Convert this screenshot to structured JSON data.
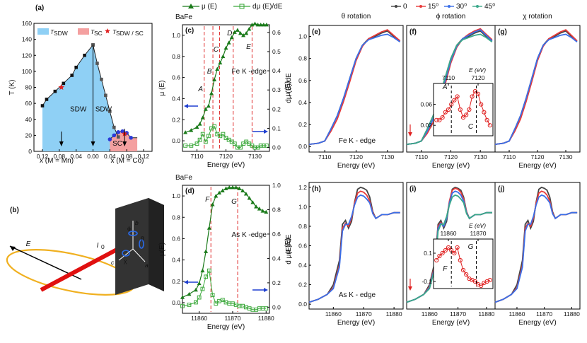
{
  "colors": {
    "sdw_fill": "#8fd0f5",
    "sc_fill": "#f4a0a0",
    "phase_line": "#222222",
    "green_mu": "#1a7a1a",
    "green_d": "#3aa83a",
    "dash_red": "#e03030",
    "arrow_blue": "#1f3fd0",
    "s0": "#444444",
    "s15": "#e83a3a",
    "s30": "#3a6fe8",
    "s45": "#3aa88a",
    "inset_red": "#e02020",
    "ellipse": "#f0b020",
    "beam": "#e01010",
    "crystal": "#333333"
  },
  "chart_data": [
    {
      "panel": "a",
      "type": "area",
      "label": "(a)",
      "ylabel": "T (K)",
      "ylim": [
        0,
        160
      ],
      "yticks": [
        "0",
        "20",
        "40",
        "60",
        "80",
        "100",
        "120",
        "140",
        "160"
      ],
      "xticks": [
        "0.12",
        "0.08",
        "0.04",
        "0.00",
        "0.04",
        "0.08",
        "0.12"
      ],
      "xlabel_left": "x (M = Mn)",
      "xlabel_right": "x (M = Co)",
      "legend": [
        "T_SDW",
        "T_SC",
        "T_SDW / T_SC"
      ],
      "legend_items": {
        "sdw": "SDW",
        "sc": "SC",
        "sdw_sc": "SDW / SC"
      },
      "region_labels": [
        "SDW",
        "SDW",
        "SC"
      ],
      "sdw_mn": {
        "x": [
          -0.12,
          -0.11,
          -0.09,
          -0.07,
          -0.05,
          -0.04,
          -0.02,
          0.0
        ],
        "y": [
          57,
          65,
          75,
          85,
          95,
          105,
          120,
          133
        ]
      },
      "sdw_co": {
        "x": [
          0.0,
          0.01,
          0.02,
          0.03,
          0.04,
          0.05,
          0.06
        ],
        "y": [
          133,
          110,
          90,
          70,
          50,
          30,
          18
        ]
      },
      "sc_co": {
        "x": [
          0.04,
          0.05,
          0.06,
          0.07,
          0.08,
          0.09
        ],
        "y": [
          15,
          20,
          24,
          25,
          23,
          17
        ]
      },
      "star_points": [
        {
          "x": -0.075,
          "y": 80
        },
        {
          "x": 0.075,
          "y": 22
        }
      ]
    },
    {
      "panel": "c",
      "type": "line",
      "label": "(c)",
      "title": "BaFe2As2",
      "legend": [
        "μ (E)",
        "dμ (E)/dE"
      ],
      "xlabel": "Energy (eV)",
      "ylabel_left": "μ (E)",
      "ylabel_right": "dμ (E)/dE",
      "xlim": [
        7105,
        7135
      ],
      "xticks": [
        "7110",
        "7120",
        "7130"
      ],
      "ylim_left": [
        -0.1,
        1.1
      ],
      "yticks_left": [
        "0.0",
        "0.2",
        "0.4",
        "0.6",
        "0.8",
        "1.0"
      ],
      "ylim_right": [
        -0.02,
        0.64
      ],
      "yticks_right": [
        "0.0",
        "0.1",
        "0.2",
        "0.3",
        "0.4",
        "0.5",
        "0.6"
      ],
      "edge_label": "Fe K -edge",
      "features": [
        {
          "name": "A",
          "x": 7112.5
        },
        {
          "name": "B",
          "x": 7115.5
        },
        {
          "name": "C",
          "x": 7117.8
        },
        {
          "name": "D",
          "x": 7122.5
        },
        {
          "name": "E",
          "x": 7129
        }
      ],
      "mu": {
        "x": [
          7106,
          7108,
          7110,
          7111,
          7112,
          7113,
          7114,
          7115,
          7116,
          7117,
          7118,
          7119,
          7120,
          7121,
          7122,
          7123,
          7124,
          7125,
          7126,
          7127,
          7128,
          7129,
          7130,
          7131,
          7132,
          7133,
          7134
        ],
        "y": [
          0.08,
          0.1,
          0.13,
          0.16,
          0.22,
          0.3,
          0.33,
          0.45,
          0.58,
          0.68,
          0.74,
          0.8,
          0.88,
          0.93,
          0.98,
          1.03,
          1.05,
          1.02,
          1.0,
          1.02,
          1.06,
          1.1,
          1.11,
          1.1,
          1.1,
          1.1,
          1.1
        ]
      },
      "dmu": {
        "x": [
          7106,
          7108,
          7110,
          7111,
          7112,
          7113,
          7114,
          7115,
          7116,
          7117,
          7118,
          7119,
          7120,
          7121,
          7122,
          7123,
          7124,
          7125,
          7126,
          7127,
          7128,
          7129,
          7130,
          7131,
          7132,
          7133,
          7134
        ],
        "y": [
          0.01,
          0.01,
          0.02,
          0.04,
          0.07,
          0.03,
          0.06,
          0.1,
          0.11,
          0.07,
          0.06,
          0.07,
          0.05,
          0.04,
          0.03,
          0.02,
          0.0,
          0.0,
          0.02,
          0.03,
          0.02,
          0.01,
          0.0,
          0.0,
          0.01,
          0.01,
          0.01
        ]
      }
    },
    {
      "panel": "d",
      "type": "line",
      "label": "(d)",
      "title": "BaFe2As2",
      "xlabel": "Energy (eV)",
      "ylabel_left": "μ(E)",
      "ylabel_right": "d μ(E)/dE",
      "xlim": [
        11855,
        11881
      ],
      "xticks": [
        "11860",
        "11870",
        "11880"
      ],
      "ylim_left": [
        -0.1,
        1.1
      ],
      "yticks_left": [
        "0.0",
        "0.2",
        "0.4",
        "0.6",
        "0.8",
        "1.0"
      ],
      "ylim_right": [
        -0.05,
        1.0
      ],
      "yticks_right": [
        "0.0",
        "0.2",
        "0.4",
        "0.6",
        "0.8",
        "1.0"
      ],
      "edge_label": "As K -edge",
      "features": [
        {
          "name": "F",
          "x": 11863.5
        },
        {
          "name": "G",
          "x": 11871.5
        }
      ],
      "mu": {
        "x": [
          11855,
          11857,
          11859,
          11860,
          11861,
          11862,
          11863,
          11864,
          11865,
          11866,
          11867,
          11868,
          11869,
          11870,
          11871,
          11872,
          11873,
          11874,
          11875,
          11876,
          11877,
          11878,
          11879,
          11880
        ],
        "y": [
          0.05,
          0.08,
          0.12,
          0.18,
          0.3,
          0.48,
          0.7,
          0.92,
          1.0,
          1.03,
          1.05,
          1.07,
          1.08,
          1.08,
          1.08,
          1.07,
          1.05,
          1.02,
          0.98,
          0.94,
          0.9,
          0.88,
          0.86,
          0.85
        ]
      },
      "dmu": {
        "x": [
          11855,
          11857,
          11859,
          11860,
          11861,
          11862,
          11863,
          11864,
          11865,
          11866,
          11867,
          11868,
          11869,
          11870,
          11871,
          11872,
          11873,
          11874,
          11875,
          11876,
          11877,
          11878,
          11879,
          11880
        ],
        "y": [
          0.01,
          0.02,
          0.04,
          0.08,
          0.15,
          0.25,
          0.3,
          0.1,
          0.03,
          0.05,
          0.06,
          0.04,
          0.03,
          0.03,
          0.02,
          0.01,
          0.01,
          0.0,
          -0.01,
          -0.02,
          -0.02,
          -0.01,
          -0.01,
          -0.01
        ]
      }
    },
    {
      "panel": "e-j",
      "type": "line",
      "legend": [
        "0",
        "15⁰",
        "30⁰",
        "45⁰"
      ],
      "columns": [
        "θ rotation",
        "ϕ rotation",
        "χ rotation"
      ],
      "top_labels": [
        "(e)",
        "(f)",
        "(g)"
      ],
      "bottom_labels": [
        "(h)",
        "(i)",
        "(j)"
      ],
      "top": {
        "xlabel": "Energy (eV)",
        "ylabel": "μ (E)",
        "xlim": [
          7105,
          7135
        ],
        "xticks": [
          "7110",
          "7120",
          "7130"
        ],
        "ylim": [
          -0.05,
          1.1
        ],
        "yticks": [
          "0.0",
          "0.2",
          "0.4",
          "0.6",
          "0.8",
          "1.0"
        ],
        "edge_label": "Fe K - edge",
        "x": [
          7105,
          7108,
          7110,
          7112,
          7114,
          7116,
          7118,
          7120,
          7122,
          7124,
          7126,
          7128,
          7130,
          7132,
          7134
        ],
        "y_phi_0": [
          0.02,
          0.03,
          0.05,
          0.16,
          0.28,
          0.44,
          0.62,
          0.8,
          0.92,
          0.98,
          1.0,
          1.03,
          1.05,
          1.0,
          0.96
        ],
        "y_phi_15": [
          0.02,
          0.03,
          0.05,
          0.12,
          0.22,
          0.38,
          0.56,
          0.76,
          0.9,
          0.98,
          1.02,
          1.05,
          1.07,
          1.02,
          0.97
        ],
        "y_phi_30": [
          0.02,
          0.03,
          0.05,
          0.14,
          0.25,
          0.41,
          0.59,
          0.78,
          0.91,
          0.98,
          1.01,
          1.04,
          1.06,
          1.01,
          0.96
        ],
        "y_phi_45": [
          0.02,
          0.03,
          0.05,
          0.16,
          0.28,
          0.44,
          0.62,
          0.8,
          0.92,
          0.97,
          0.99,
          1.01,
          1.02,
          0.99,
          0.95
        ]
      },
      "bottom": {
        "xlabel": "Energy (eV)",
        "ylabel": "μ (E)",
        "xlim": [
          11852,
          11883
        ],
        "xticks": [
          "11860",
          "11870",
          "11880"
        ],
        "ylim": [
          -0.05,
          1.25
        ],
        "yticks": [
          "0.0",
          "0.2",
          "0.4",
          "0.6",
          "0.8",
          "1.0",
          "1.2"
        ],
        "edge_label": "As K - edge",
        "x": [
          11852,
          11855,
          11858,
          11860,
          11862,
          11863,
          11864,
          11865,
          11866,
          11867,
          11868,
          11869,
          11870,
          11871,
          11872,
          11873,
          11874,
          11876,
          11878,
          11880,
          11882
        ],
        "y_0": [
          0.02,
          0.05,
          0.1,
          0.2,
          0.45,
          0.82,
          0.86,
          0.78,
          0.85,
          1.05,
          1.18,
          1.2,
          1.19,
          1.17,
          1.1,
          0.95,
          0.88,
          0.92,
          0.92,
          0.94,
          0.94
        ],
        "y_phi_15": [
          0.02,
          0.05,
          0.1,
          0.18,
          0.42,
          0.8,
          0.84,
          0.8,
          0.88,
          1.06,
          1.17,
          1.19,
          1.18,
          1.15,
          1.08,
          0.95,
          0.88,
          0.92,
          0.92,
          0.94,
          0.94
        ],
        "y_phi_30": [
          0.02,
          0.05,
          0.1,
          0.17,
          0.4,
          0.78,
          0.83,
          0.8,
          0.88,
          1.04,
          1.14,
          1.16,
          1.15,
          1.12,
          1.06,
          0.94,
          0.88,
          0.92,
          0.92,
          0.94,
          0.94
        ],
        "y_phi_45": [
          0.02,
          0.05,
          0.1,
          0.16,
          0.38,
          0.75,
          0.82,
          0.82,
          0.9,
          1.02,
          1.1,
          1.12,
          1.11,
          1.08,
          1.04,
          0.93,
          0.88,
          0.92,
          0.92,
          0.94,
          0.94
        ]
      },
      "inset_f": {
        "xlabel": "E (eV)",
        "xlim": [
          7105,
          7125
        ],
        "xticks": [
          "7110",
          "7120"
        ],
        "ylim": [
          0.0,
          0.1
        ],
        "yticks": [
          "0.02",
          "0.06"
        ],
        "labels": [
          "A",
          "C"
        ],
        "x": [
          7106,
          7107,
          7108,
          7109,
          7110,
          7111,
          7112,
          7113,
          7114,
          7115,
          7116,
          7117,
          7118,
          7119,
          7120,
          7121,
          7122,
          7123,
          7124
        ],
        "y": [
          0.03,
          0.03,
          0.035,
          0.045,
          0.05,
          0.06,
          0.068,
          0.075,
          0.05,
          0.035,
          0.04,
          0.05,
          0.075,
          0.085,
          0.08,
          0.06,
          0.045,
          0.03,
          0.02
        ]
      },
      "inset_i": {
        "xlabel": "E (eV)",
        "xlim": [
          11855,
          11875
        ],
        "xticks": [
          "11860",
          "11870"
        ],
        "ylim": [
          -0.15,
          0.2
        ],
        "yticks": [
          "0.1",
          "-0.1"
        ],
        "labels": [
          "F",
          "G"
        ],
        "x": [
          11856,
          11857,
          11858,
          11859,
          11860,
          11861,
          11862,
          11863,
          11864,
          11865,
          11866,
          11867,
          11868,
          11869,
          11870,
          11871,
          11872,
          11873,
          11874
        ],
        "y": [
          0.05,
          0.08,
          0.1,
          0.12,
          0.14,
          0.12,
          0.1,
          0.14,
          0.05,
          -0.02,
          -0.05,
          -0.08,
          -0.09,
          -0.1,
          -0.12,
          -0.13,
          -0.11,
          -0.1,
          -0.09
        ]
      }
    }
  ],
  "diagram_b": {
    "label": "(b)",
    "e_label": "E",
    "i_label": "I",
    "i_sub": "0",
    "axis_a": "a",
    "axis_b": "b",
    "axis_c": "c",
    "axis_chi": "χ",
    "axis_theta": "θ",
    "axis_phi": "ϕ"
  }
}
